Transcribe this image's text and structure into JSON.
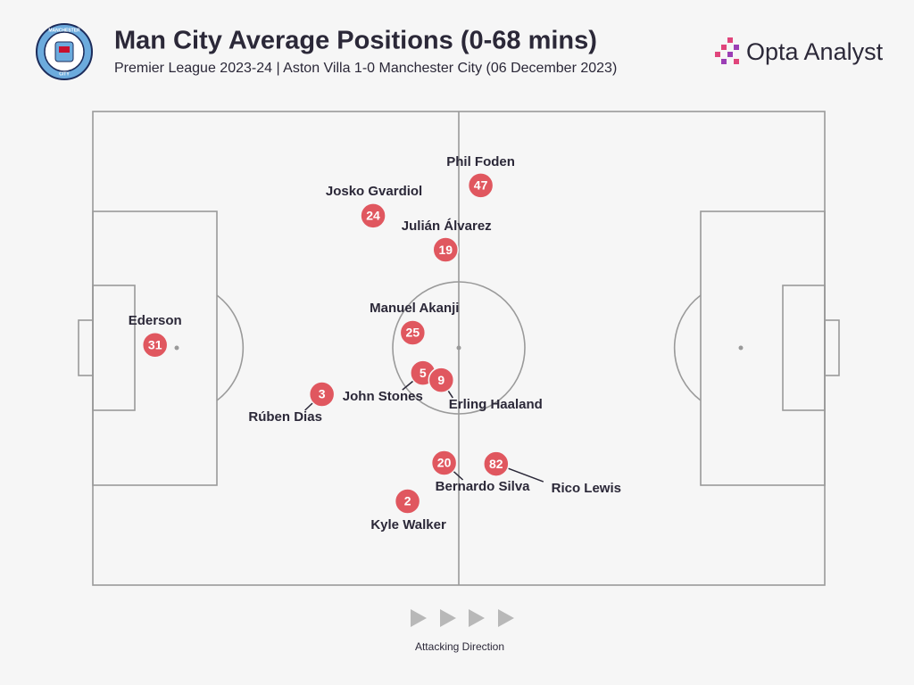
{
  "brand": "Opta Analyst",
  "badge": {
    "top": "MANCHESTER",
    "bottom": "CITY"
  },
  "chart_data": {
    "type": "scatter",
    "title": "Man City Average Positions (0-68 mins)",
    "subtitle": "Premier League 2023-24 | Aston Villa 1-0 Manchester City (06 December 2023)",
    "annotation": "Attacking Direction",
    "labels": [
      "Ederson",
      "Rúben Dias",
      "John Stones",
      "Erling Haaland",
      "Manuel Akanji",
      "Josko Gvardiol",
      "Phil Foden",
      "Julián Álvarez",
      "Bernardo Silva",
      "Rico Lewis",
      "Kyle Walker"
    ],
    "numbers": [
      "31",
      "3",
      "5",
      "9",
      "25",
      "24",
      "47",
      "19",
      "20",
      "82",
      "2"
    ],
    "x": [
      8.5,
      31.3,
      45.1,
      47.6,
      43.7,
      38.3,
      53.0,
      48.2,
      48.0,
      55.1,
      43.0
    ],
    "y": [
      50.7,
      40.3,
      44.8,
      43.3,
      53.3,
      78.0,
      84.4,
      70.8,
      25.8,
      25.6,
      17.7
    ],
    "xlim": [
      0,
      100
    ],
    "ylim": [
      0,
      100
    ],
    "color": "#e0575f"
  }
}
